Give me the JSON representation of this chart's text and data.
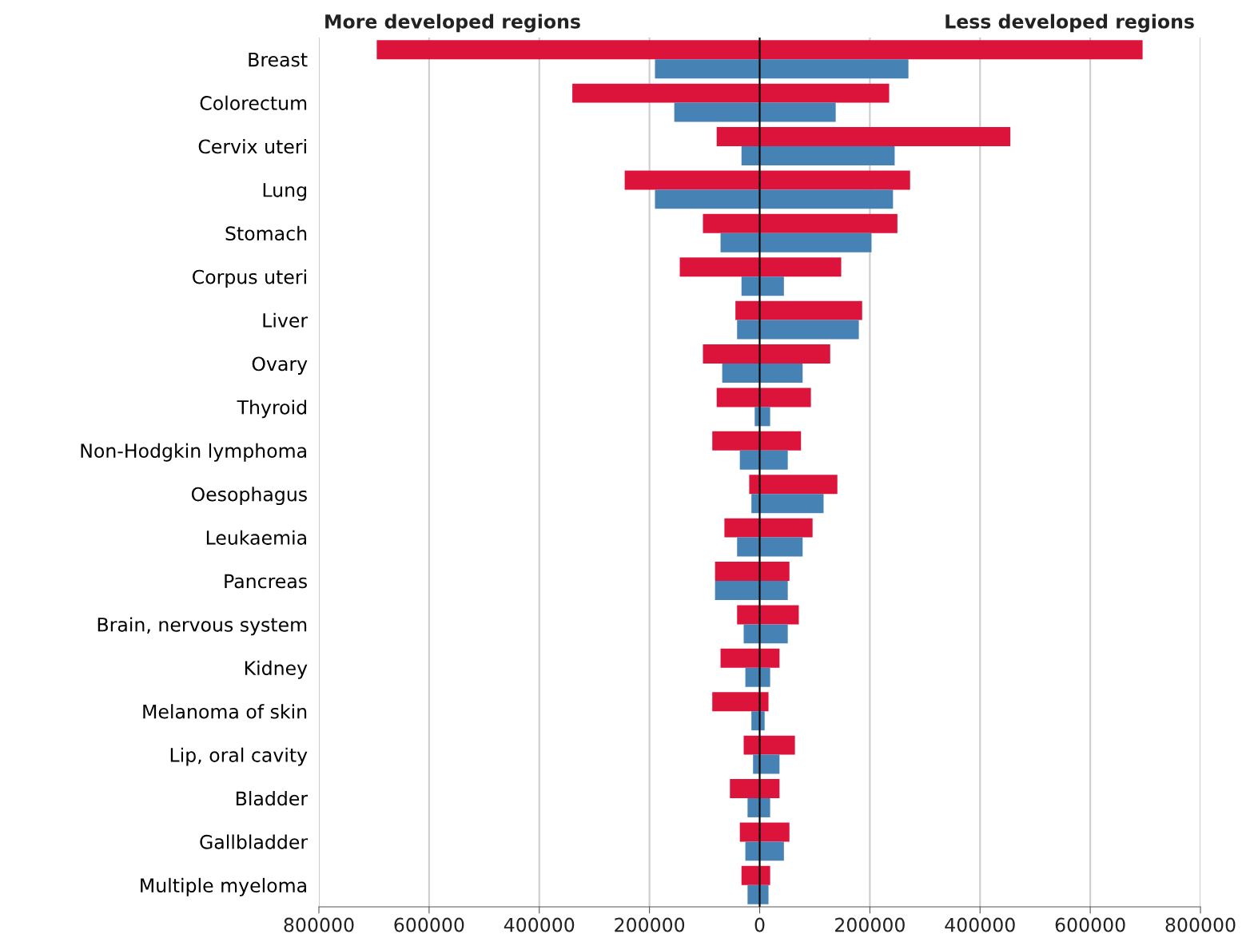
{
  "chart_data": {
    "type": "bar",
    "orientation": "horizontal",
    "categories": [
      "Breast",
      "Colorectum",
      "Cervix uteri",
      "Lung",
      "Stomach",
      "Corpus uteri",
      "Liver",
      "Ovary",
      "Thyroid",
      "Non-Hodgkin lymphoma",
      "Oesophagus",
      "Leukaemia",
      "Pancreas",
      "Brain, nervous system",
      "Kidney",
      "Melanoma of skin",
      "Lip, oral cavity",
      "Bladder",
      "Gallbladder",
      "Multiple myeloma"
    ],
    "series": [
      {
        "color": "#dc143c",
        "base": [
          -695000,
          -340000,
          -78000,
          -245000,
          -103000,
          -145000,
          -44000,
          -103000,
          -78000,
          -86000,
          -19000,
          -64000,
          -81000,
          -41000,
          -71000,
          -86000,
          -29000,
          -54000,
          -36000,
          -33000
        ],
        "values": [
          1390000,
          575000,
          533000,
          518000,
          353000,
          293000,
          230000,
          231000,
          171000,
          161000,
          160000,
          160000,
          135000,
          112000,
          107000,
          102000,
          93000,
          90000,
          90000,
          52000
        ]
      },
      {
        "color": "#4682b4",
        "base": [
          -190000,
          -155000,
          -33000,
          -190000,
          -71000,
          -33000,
          -41000,
          -68000,
          -9000,
          -36000,
          -15000,
          -41000,
          -81000,
          -29000,
          -26000,
          -15000,
          -12000,
          -22000,
          -26000,
          -22000
        ],
        "values": [
          460000,
          293000,
          278000,
          432000,
          274000,
          77000,
          221000,
          146000,
          28000,
          87000,
          131000,
          119000,
          132000,
          80000,
          45000,
          24000,
          48000,
          41000,
          70000,
          38000
        ]
      }
    ],
    "xlim": [
      -800000,
      800000
    ],
    "xticks": [
      {
        "value": -800000,
        "label": "800000"
      },
      {
        "value": -600000,
        "label": "600000"
      },
      {
        "value": -400000,
        "label": "400000"
      },
      {
        "value": -200000,
        "label": "200000"
      },
      0,
      200000,
      400000,
      600000,
      800000
    ],
    "grid": "x",
    "ref_lines": [
      {
        "axis": "x",
        "value": 0,
        "color": "#000000"
      }
    ],
    "annotations": [
      "More developed regions",
      "Less developed regions"
    ]
  }
}
